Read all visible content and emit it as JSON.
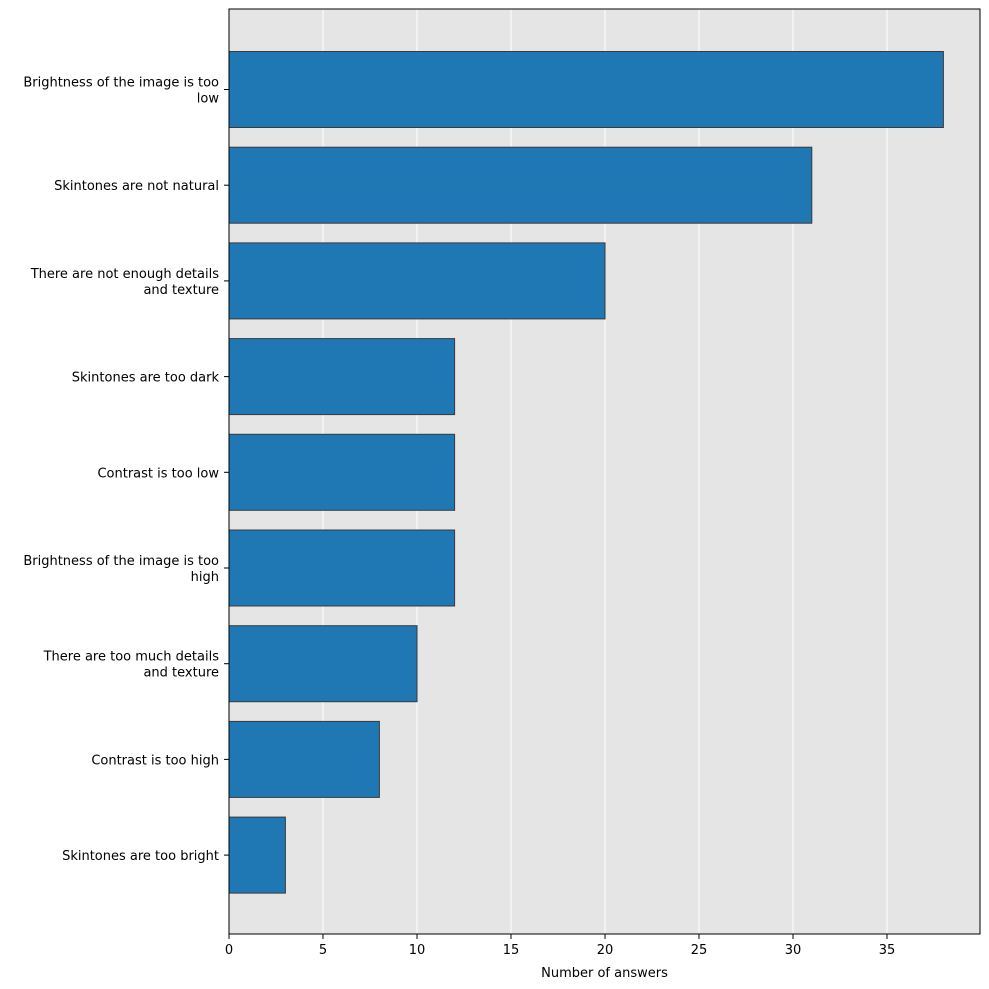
{
  "chart_data": {
    "type": "bar",
    "orientation": "horizontal",
    "categories": [
      [
        "Brightness of the image is too",
        "low"
      ],
      [
        "Skintones are not natural"
      ],
      [
        "There are not enough details",
        "and texture"
      ],
      [
        "Skintones are too dark"
      ],
      [
        "Contrast is too low"
      ],
      [
        "Brightness of the image is too",
        "high"
      ],
      [
        "There are too much details",
        "and texture"
      ],
      [
        "Contrast is too high"
      ],
      [
        "Skintones are too bright"
      ]
    ],
    "values": [
      38,
      31,
      20,
      12,
      12,
      12,
      10,
      8,
      3
    ],
    "xlabel": "Number of answers",
    "ylabel": "",
    "title": "",
    "xlim": [
      0,
      40
    ],
    "xticks": [
      "0",
      "5",
      "10",
      "15",
      "20",
      "25",
      "30",
      "35"
    ],
    "grid": "vertical",
    "colors": {
      "bar": "#1f77b4",
      "bar_edge": "#3a3a3a",
      "plot_background": "#e5e5e5",
      "grid": "#ffffff",
      "axis": "#000000"
    }
  }
}
